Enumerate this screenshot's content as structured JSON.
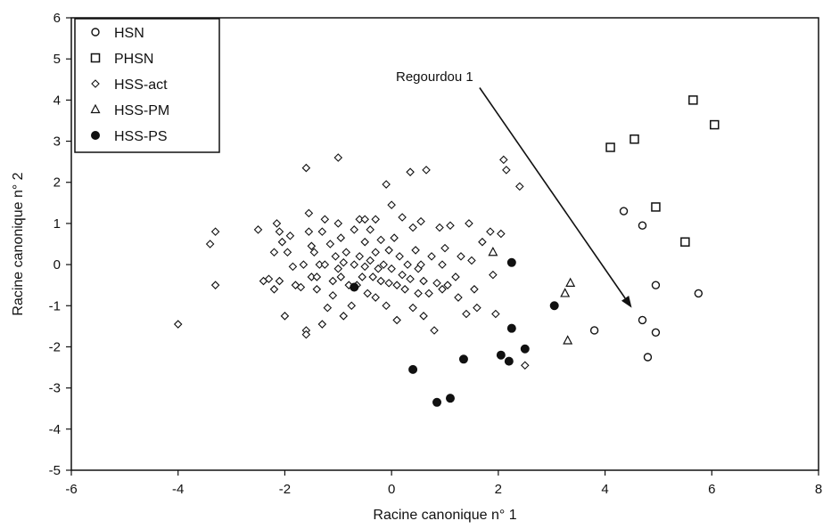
{
  "chart_data": {
    "type": "scatter",
    "xlabel": "Racine canonique n° 1",
    "ylabel": "Racine canonique n° 2",
    "xlim": [
      -6,
      8
    ],
    "ylim": [
      -5,
      6
    ],
    "xticks": [
      "-6",
      "-4",
      "-2",
      "0",
      "2",
      "4",
      "6",
      "8"
    ],
    "yticks": [
      "-5",
      "-4",
      "-3",
      "-2",
      "-1",
      "0",
      "1",
      "2",
      "3",
      "4",
      "5",
      "6"
    ],
    "grid": false,
    "legend_position": "top-left",
    "annotation": {
      "text": "Regourdou 1",
      "arrow_from": [
        1.65,
        4.3
      ],
      "arrow_to": [
        4.5,
        -1.05
      ]
    },
    "series": [
      {
        "name": "HSN",
        "marker": "circle-open",
        "points": [
          [
            3.8,
            -1.6
          ],
          [
            4.35,
            1.3
          ],
          [
            4.7,
            0.95
          ],
          [
            4.7,
            -1.35
          ],
          [
            4.8,
            -2.25
          ],
          [
            4.95,
            -1.65
          ],
          [
            4.95,
            -0.5
          ],
          [
            5.75,
            -0.7
          ]
        ]
      },
      {
        "name": "PHSN",
        "marker": "square-open",
        "points": [
          [
            4.1,
            2.85
          ],
          [
            4.55,
            3.05
          ],
          [
            4.95,
            1.4
          ],
          [
            5.5,
            0.55
          ],
          [
            5.65,
            4.0
          ],
          [
            6.05,
            3.4
          ]
        ]
      },
      {
        "name": "HSS-act",
        "marker": "diamond-open",
        "points": [
          [
            -4.0,
            -1.45
          ],
          [
            -3.4,
            0.5
          ],
          [
            -3.3,
            0.8
          ],
          [
            -3.3,
            -0.5
          ],
          [
            -2.5,
            0.85
          ],
          [
            -2.4,
            -0.4
          ],
          [
            -2.3,
            -0.35
          ],
          [
            -2.2,
            0.3
          ],
          [
            -2.2,
            -0.6
          ],
          [
            -2.15,
            1.0
          ],
          [
            -2.1,
            0.8
          ],
          [
            -2.1,
            -0.4
          ],
          [
            -2.05,
            0.55
          ],
          [
            -2.0,
            -1.25
          ],
          [
            -1.95,
            0.3
          ],
          [
            -1.9,
            0.7
          ],
          [
            -1.85,
            -0.05
          ],
          [
            -1.8,
            -0.5
          ],
          [
            -1.7,
            -0.55
          ],
          [
            -1.65,
            0.0
          ],
          [
            -1.6,
            2.35
          ],
          [
            -1.6,
            -1.6
          ],
          [
            -1.6,
            -1.7
          ],
          [
            -1.55,
            1.25
          ],
          [
            -1.55,
            0.8
          ],
          [
            -1.5,
            0.45
          ],
          [
            -1.5,
            -0.3
          ],
          [
            -1.45,
            0.3
          ],
          [
            -1.4,
            -0.3
          ],
          [
            -1.4,
            -0.6
          ],
          [
            -1.35,
            0.0
          ],
          [
            -1.3,
            0.8
          ],
          [
            -1.3,
            -1.45
          ],
          [
            -1.25,
            1.1
          ],
          [
            -1.25,
            0.0
          ],
          [
            -1.2,
            -1.05
          ],
          [
            -1.15,
            0.5
          ],
          [
            -1.1,
            -0.4
          ],
          [
            -1.1,
            -0.75
          ],
          [
            -1.05,
            0.2
          ],
          [
            -1.0,
            2.6
          ],
          [
            -1.0,
            1.0
          ],
          [
            -1.0,
            -0.1
          ],
          [
            -0.95,
            0.65
          ],
          [
            -0.95,
            -0.3
          ],
          [
            -0.9,
            0.05
          ],
          [
            -0.9,
            -1.25
          ],
          [
            -0.85,
            0.3
          ],
          [
            -0.8,
            -0.5
          ],
          [
            -0.75,
            -1.0
          ],
          [
            -0.7,
            0.85
          ],
          [
            -0.7,
            0.0
          ],
          [
            -0.65,
            -0.5
          ],
          [
            -0.6,
            1.1
          ],
          [
            -0.6,
            0.2
          ],
          [
            -0.55,
            -0.3
          ],
          [
            -0.5,
            1.1
          ],
          [
            -0.5,
            0.55
          ],
          [
            -0.5,
            -0.05
          ],
          [
            -0.45,
            -0.7
          ],
          [
            -0.4,
            0.85
          ],
          [
            -0.4,
            0.1
          ],
          [
            -0.35,
            -0.3
          ],
          [
            -0.3,
            1.1
          ],
          [
            -0.3,
            0.3
          ],
          [
            -0.3,
            -0.8
          ],
          [
            -0.25,
            -0.1
          ],
          [
            -0.2,
            0.6
          ],
          [
            -0.2,
            -0.4
          ],
          [
            -0.15,
            0.0
          ],
          [
            -0.1,
            1.95
          ],
          [
            -0.1,
            -1.0
          ],
          [
            -0.05,
            0.35
          ],
          [
            -0.05,
            -0.45
          ],
          [
            0.0,
            1.45
          ],
          [
            0.0,
            -0.1
          ],
          [
            0.05,
            0.65
          ],
          [
            0.1,
            -0.5
          ],
          [
            0.1,
            -1.35
          ],
          [
            0.15,
            0.2
          ],
          [
            0.2,
            1.15
          ],
          [
            0.2,
            -0.25
          ],
          [
            0.25,
            -0.6
          ],
          [
            0.3,
            0.0
          ],
          [
            0.35,
            2.25
          ],
          [
            0.35,
            -0.35
          ],
          [
            0.4,
            0.9
          ],
          [
            0.4,
            -1.05
          ],
          [
            0.45,
            0.35
          ],
          [
            0.5,
            -0.1
          ],
          [
            0.5,
            -0.7
          ],
          [
            0.55,
            1.05
          ],
          [
            0.55,
            0.0
          ],
          [
            0.6,
            -0.4
          ],
          [
            0.6,
            -1.25
          ],
          [
            0.65,
            2.3
          ],
          [
            0.7,
            -0.7
          ],
          [
            0.75,
            0.2
          ],
          [
            0.8,
            -1.6
          ],
          [
            0.85,
            -0.45
          ],
          [
            0.9,
            0.9
          ],
          [
            0.95,
            0.0
          ],
          [
            0.95,
            -0.6
          ],
          [
            1.0,
            0.4
          ],
          [
            1.05,
            -0.5
          ],
          [
            1.1,
            0.95
          ],
          [
            1.2,
            -0.3
          ],
          [
            1.25,
            -0.8
          ],
          [
            1.3,
            0.2
          ],
          [
            1.4,
            -1.2
          ],
          [
            1.45,
            1.0
          ],
          [
            1.5,
            0.1
          ],
          [
            1.55,
            -0.6
          ],
          [
            1.6,
            -1.05
          ],
          [
            1.7,
            0.55
          ],
          [
            1.85,
            0.8
          ],
          [
            1.9,
            -0.25
          ],
          [
            1.95,
            -1.2
          ],
          [
            2.05,
            0.75
          ],
          [
            2.1,
            2.55
          ],
          [
            2.15,
            2.3
          ],
          [
            2.4,
            1.9
          ],
          [
            2.5,
            -2.45
          ]
        ]
      },
      {
        "name": "HSS-PM",
        "marker": "triangle-open",
        "points": [
          [
            1.9,
            0.3
          ],
          [
            3.25,
            -0.7
          ],
          [
            3.35,
            -0.45
          ],
          [
            3.3,
            -1.85
          ]
        ]
      },
      {
        "name": "HSS-PS",
        "marker": "circle-filled",
        "points": [
          [
            -0.7,
            -0.55
          ],
          [
            0.4,
            -2.55
          ],
          [
            0.85,
            -3.35
          ],
          [
            1.1,
            -3.25
          ],
          [
            1.35,
            -2.3
          ],
          [
            2.05,
            -2.2
          ],
          [
            2.2,
            -2.35
          ],
          [
            2.25,
            0.05
          ],
          [
            2.25,
            -1.55
          ],
          [
            2.5,
            -2.05
          ],
          [
            3.05,
            -1.0
          ]
        ]
      }
    ]
  }
}
